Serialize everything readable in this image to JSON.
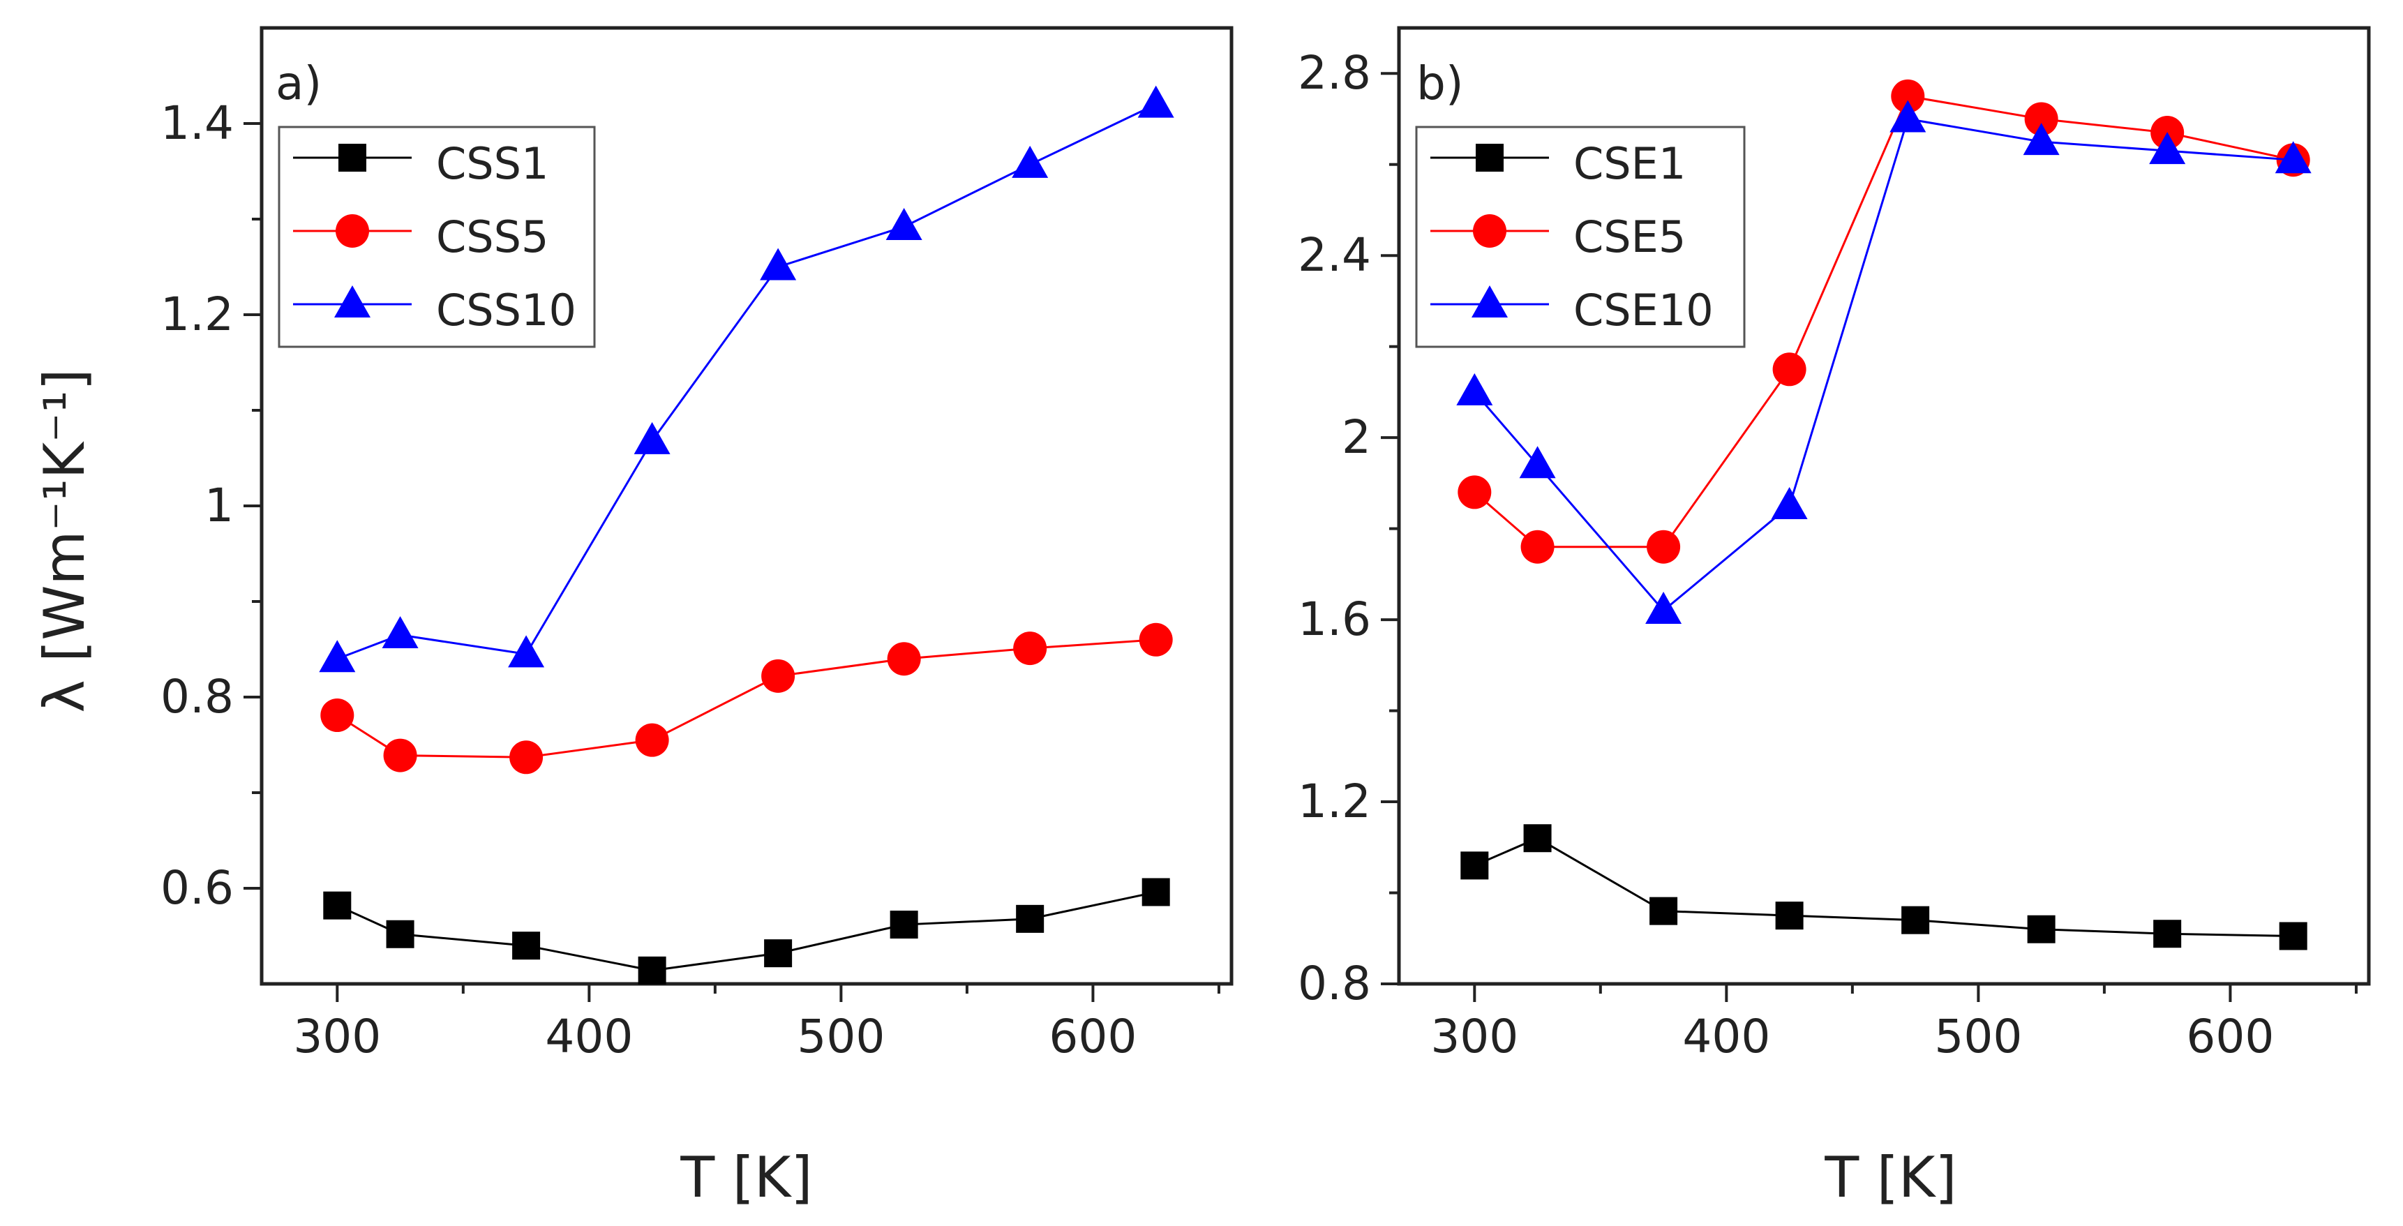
{
  "chart_data": [
    {
      "type": "line",
      "panel_label": "a)",
      "xlabel": "T [K]",
      "ylabel": "λ [Wm⁻¹K⁻¹]",
      "xlim": [
        270,
        655
      ],
      "ylim": [
        0.5,
        1.5
      ],
      "xticks": [
        300,
        400,
        500,
        600
      ],
      "xtick_labels": [
        "300",
        "400",
        "500",
        "600"
      ],
      "yticks": [
        0.6,
        0.8,
        1.0,
        1.2,
        1.4
      ],
      "ytick_labels": [
        "0.6",
        "0.8",
        "1",
        "1.2",
        "1.4"
      ],
      "grid": false,
      "legend_position": "top-left",
      "series": [
        {
          "name": "CSS1",
          "marker": "square",
          "color": "#000000",
          "x": [
            300,
            325,
            375,
            425,
            475,
            525,
            575,
            625
          ],
          "y": [
            0.582,
            0.552,
            0.54,
            0.514,
            0.532,
            0.562,
            0.568,
            0.596
          ]
        },
        {
          "name": "CSS5",
          "marker": "circle",
          "color": "#ff0000",
          "x": [
            300,
            325,
            375,
            425,
            475,
            525,
            575,
            625
          ],
          "y": [
            0.781,
            0.739,
            0.737,
            0.755,
            0.822,
            0.84,
            0.851,
            0.86
          ]
        },
        {
          "name": "CSS10",
          "marker": "triangle",
          "color": "#0000ff",
          "x": [
            300,
            325,
            375,
            425,
            475,
            525,
            575,
            625
          ],
          "y": [
            0.84,
            0.865,
            0.845,
            1.068,
            1.25,
            1.292,
            1.357,
            1.42
          ]
        }
      ]
    },
    {
      "type": "line",
      "panel_label": "b)",
      "xlabel": "T [K]",
      "ylabel": "",
      "xlim": [
        270,
        655
      ],
      "ylim": [
        0.8,
        2.9
      ],
      "xticks": [
        300,
        400,
        500,
        600
      ],
      "xtick_labels": [
        "300",
        "400",
        "500",
        "600"
      ],
      "yticks": [
        0.8,
        1.2,
        1.6,
        2.0,
        2.4,
        2.8
      ],
      "ytick_labels": [
        "0.8",
        "1.2",
        "1.6",
        "2",
        "2.4",
        "2.8"
      ],
      "grid": false,
      "legend_position": "top-left",
      "series": [
        {
          "name": "CSE1",
          "marker": "square",
          "color": "#000000",
          "x": [
            300,
            325,
            375,
            425,
            475,
            525,
            575,
            625
          ],
          "y": [
            1.06,
            1.12,
            0.96,
            0.95,
            0.94,
            0.92,
            0.91,
            0.905
          ]
        },
        {
          "name": "CSE5",
          "marker": "circle",
          "color": "#ff0000",
          "x": [
            300,
            325,
            375,
            425,
            472,
            525,
            575,
            625
          ],
          "y": [
            1.88,
            1.76,
            1.76,
            2.15,
            2.75,
            2.7,
            2.67,
            2.61
          ]
        },
        {
          "name": "CSE10",
          "marker": "triangle",
          "color": "#0000ff",
          "x": [
            300,
            325,
            375,
            425,
            472,
            525,
            575,
            625
          ],
          "y": [
            2.1,
            1.94,
            1.62,
            1.85,
            2.7,
            2.65,
            2.63,
            2.61
          ]
        }
      ]
    }
  ]
}
